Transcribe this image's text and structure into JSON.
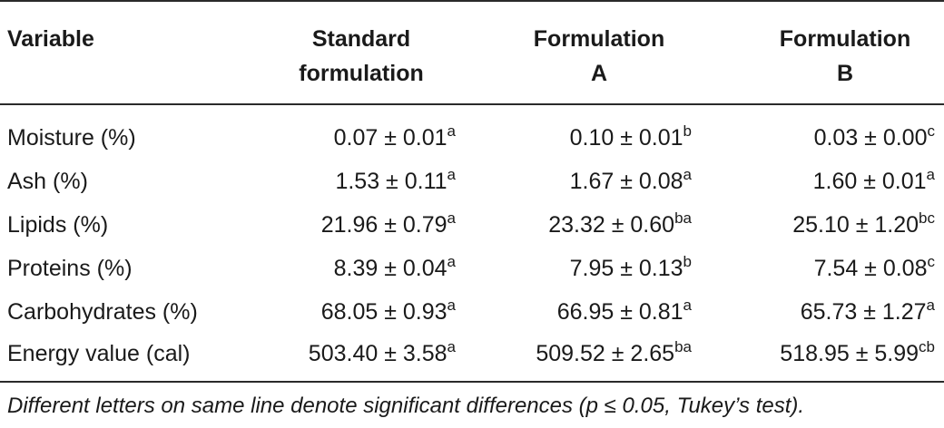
{
  "table": {
    "headers": [
      {
        "line1": "Variable",
        "line2": ""
      },
      {
        "line1": "Standard",
        "line2": "formulation"
      },
      {
        "line1": "Formulation",
        "line2": "A"
      },
      {
        "line1": "Formulation",
        "line2": "B"
      }
    ],
    "rows": [
      {
        "label": "Moisture (%)",
        "cells": [
          {
            "value": "0.07 ± 0.01",
            "sup": "a"
          },
          {
            "value": "0.10 ± 0.01",
            "sup": "b"
          },
          {
            "value": "0.03 ± 0.00",
            "sup": "c"
          }
        ]
      },
      {
        "label": "Ash (%)",
        "cells": [
          {
            "value": "1.53 ± 0.11",
            "sup": "a"
          },
          {
            "value": "1.67 ± 0.08",
            "sup": "a"
          },
          {
            "value": "1.60 ± 0.01",
            "sup": "a"
          }
        ]
      },
      {
        "label": "Lipids (%)",
        "cells": [
          {
            "value": "21.96 ± 0.79",
            "sup": "a"
          },
          {
            "value": "23.32 ± 0.60",
            "sup": "ba"
          },
          {
            "value": "25.10 ± 1.20",
            "sup": "bc"
          }
        ]
      },
      {
        "label": "Proteins (%)",
        "cells": [
          {
            "value": "8.39 ± 0.04",
            "sup": "a"
          },
          {
            "value": "7.95 ± 0.13",
            "sup": "b"
          },
          {
            "value": "7.54 ± 0.08",
            "sup": "c"
          }
        ]
      },
      {
        "label": "Carbohydrates (%)",
        "cells": [
          {
            "value": "68.05 ± 0.93",
            "sup": "a"
          },
          {
            "value": "66.95 ± 0.81",
            "sup": "a"
          },
          {
            "value": "65.73 ± 1.27",
            "sup": "a"
          }
        ]
      },
      {
        "label": "Energy value (cal)",
        "cells": [
          {
            "value": "503.40 ± 3.58",
            "sup": "a"
          },
          {
            "value": "509.52 ± 2.65",
            "sup": "ba"
          },
          {
            "value": "518.95 ± 5.99",
            "sup": "cb"
          }
        ]
      }
    ]
  },
  "footnote": "Different letters on same line denote significant differences (p ≤ 0.05, Tukey’s test)."
}
